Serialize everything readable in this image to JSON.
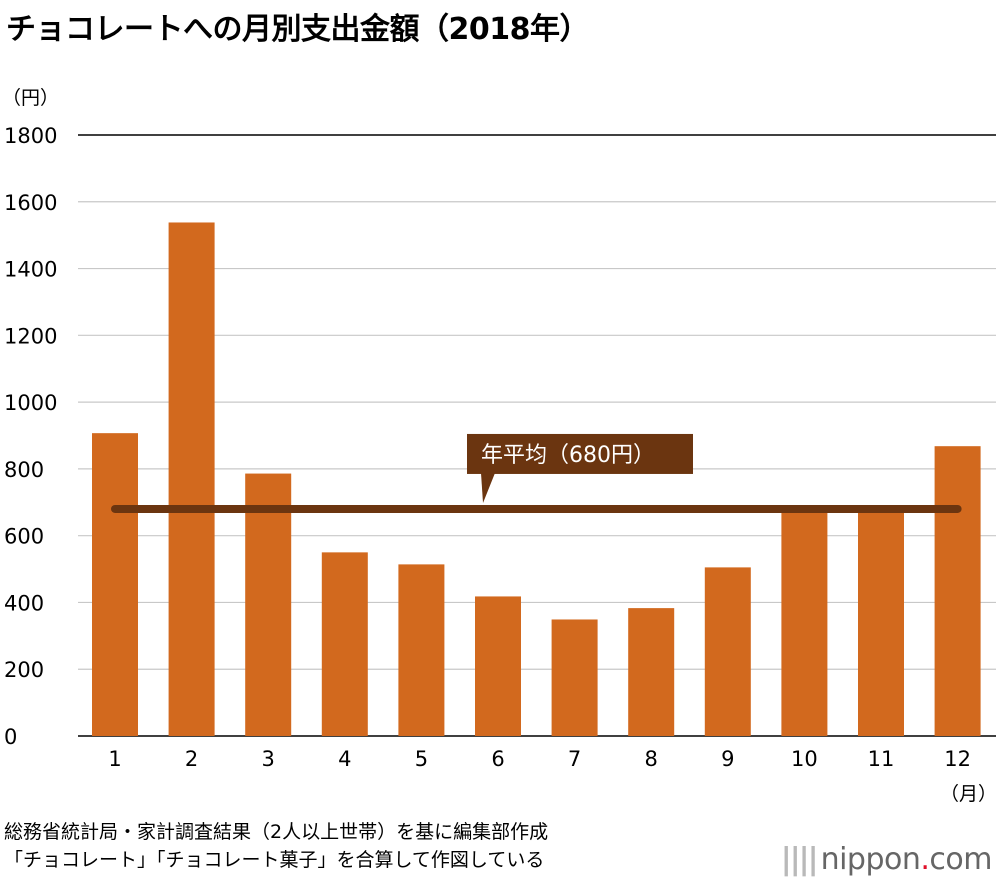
{
  "title": "チョコレートへの月別支出金額（2018年）",
  "source": {
    "line1": "総務省統計局・家計調査結果（2人以上世帯）を基に編集部作成",
    "line2": "「チョコレート」「チョコレート菓子」を合算して作図している"
  },
  "logo": {
    "name": "nippon",
    "dot": ".",
    "tld": "com"
  },
  "chart_data": {
    "type": "bar",
    "title": "チョコレートへの月別支出金額（2018年）",
    "ylabel": "（円）",
    "xlabel": "（月）",
    "categories": [
      "1",
      "2",
      "3",
      "4",
      "5",
      "6",
      "7",
      "8",
      "9",
      "10",
      "11",
      "12"
    ],
    "values": [
      907,
      1538,
      786,
      550,
      514,
      418,
      349,
      383,
      505,
      682,
      682,
      868
    ],
    "ylim": [
      0,
      1800
    ],
    "yticks": [
      0,
      200,
      400,
      600,
      800,
      1000,
      1200,
      1400,
      1600,
      1800
    ],
    "grid": true,
    "bar_color": "#d2691e",
    "average": {
      "value": 680,
      "label": "年平均（680円）",
      "color": "#6b3510"
    }
  }
}
